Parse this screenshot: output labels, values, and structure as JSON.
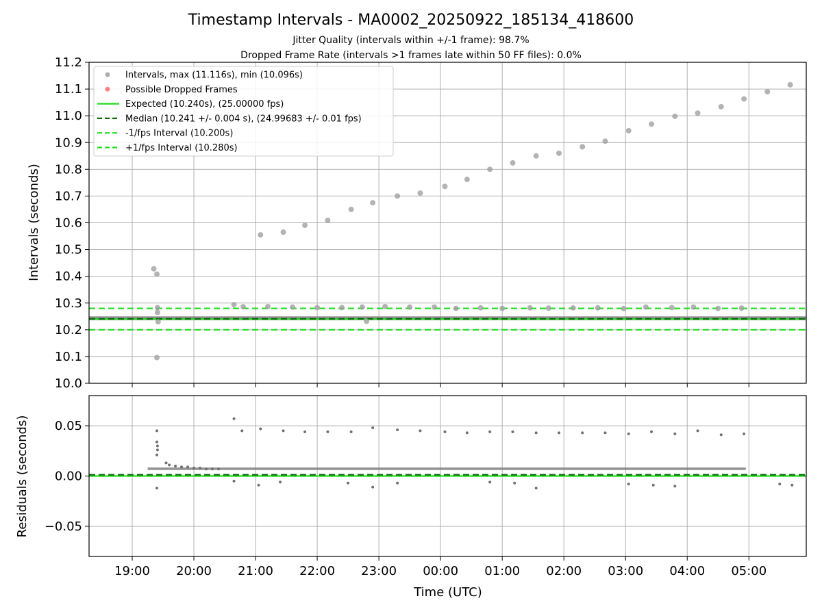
{
  "chart_data": [
    {
      "type": "scatter",
      "title": "Timestamp Intervals - MA0002_20250922_185134_418600",
      "subtitle_1": "Jitter Quality (intervals within +/-1 frame): 98.7%",
      "subtitle_2": "Dropped Frame Rate (intervals >1 frames late within 50 FF files): 0.0%",
      "xlabel": "",
      "ylabel": "Intervals (seconds)",
      "x_unit": "hours since 00:00 UTC (19:00 = -5, 05:00 = 5)",
      "xlim": [
        -5.7,
        5.93
      ],
      "ylim": [
        10.0,
        11.2
      ],
      "yticks": [
        "10.0",
        "10.1",
        "10.2",
        "10.3",
        "10.4",
        "10.5",
        "10.6",
        "10.7",
        "10.8",
        "10.9",
        "11.0",
        "11.1",
        "11.2"
      ],
      "grid": true,
      "legend_position": "upper-left",
      "legend": [
        {
          "label": "Intervals, max (11.116s), min (10.096s)",
          "kind": "marker",
          "color": "#a0a0a0"
        },
        {
          "label": "Possible Dropped Frames",
          "kind": "marker",
          "color": "#ff6b6b"
        },
        {
          "label": "Expected (10.240s), (25.00000 fps)",
          "kind": "solid",
          "color": "#1fdc1f"
        },
        {
          "label": "Median (10.241 +/- 0.004 s), (24.99683 +/- 0.01 fps)",
          "kind": "dashed",
          "color": "#0a6a0a"
        },
        {
          "label": "-1/fps Interval (10.200s)",
          "kind": "dashed",
          "color": "#1fdc1f"
        },
        {
          "label": "+1/fps Interval (10.280s)",
          "kind": "dashed",
          "color": "#1fdc1f"
        }
      ],
      "hlines": [
        {
          "name": "expected",
          "y": 10.24,
          "style": "solid",
          "color": "#1fdc1f"
        },
        {
          "name": "median",
          "y": 10.241,
          "style": "dashed",
          "color": "#0a6a0a"
        },
        {
          "name": "minus-one-fps",
          "y": 10.2,
          "style": "dashed",
          "color": "#1fdc1f"
        },
        {
          "name": "plus-one-fps",
          "y": 10.28,
          "style": "dashed",
          "color": "#1fdc1f"
        }
      ],
      "baseline_band": {
        "x_start": -5.7,
        "x_end": 5.93,
        "y_low": 10.236,
        "y_high": 10.25,
        "color": "#808080"
      },
      "series": [
        {
          "name": "Intervals, max (11.116s), min (10.096s)",
          "color": "#a0a0a0",
          "points": [
            [
              -4.65,
              10.428
            ],
            [
              -4.6,
              10.408
            ],
            [
              -4.59,
              10.283
            ],
            [
              -4.59,
              10.265
            ],
            [
              -4.58,
              10.23
            ],
            [
              -4.6,
              10.096
            ],
            [
              -3.35,
              10.294
            ],
            [
              -3.2,
              10.286
            ],
            [
              -2.92,
              10.555
            ],
            [
              -2.8,
              10.287
            ],
            [
              -2.55,
              10.565
            ],
            [
              -2.4,
              10.285
            ],
            [
              -2.2,
              10.591
            ],
            [
              -2.0,
              10.283
            ],
            [
              -1.83,
              10.609
            ],
            [
              -1.6,
              10.283
            ],
            [
              -1.45,
              10.65
            ],
            [
              -1.27,
              10.285
            ],
            [
              -1.1,
              10.675
            ],
            [
              -1.2,
              10.232
            ],
            [
              -0.9,
              10.287
            ],
            [
              -0.7,
              10.7
            ],
            [
              -0.5,
              10.285
            ],
            [
              -0.33,
              10.711
            ],
            [
              -0.1,
              10.285
            ],
            [
              0.07,
              10.736
            ],
            [
              0.25,
              10.28
            ],
            [
              0.43,
              10.762
            ],
            [
              0.65,
              10.282
            ],
            [
              0.8,
              10.8
            ],
            [
              1.0,
              10.28
            ],
            [
              1.17,
              10.824
            ],
            [
              1.45,
              10.282
            ],
            [
              1.55,
              10.85
            ],
            [
              1.75,
              10.281
            ],
            [
              1.92,
              10.86
            ],
            [
              2.15,
              10.282
            ],
            [
              2.3,
              10.884
            ],
            [
              2.55,
              10.282
            ],
            [
              2.67,
              10.905
            ],
            [
              2.97,
              10.279
            ],
            [
              3.05,
              10.944
            ],
            [
              3.33,
              10.285
            ],
            [
              3.42,
              10.969
            ],
            [
              3.75,
              10.283
            ],
            [
              3.8,
              10.998
            ],
            [
              4.1,
              10.285
            ],
            [
              4.17,
              11.01
            ],
            [
              4.5,
              10.28
            ],
            [
              4.55,
              11.034
            ],
            [
              4.88,
              10.281
            ],
            [
              4.92,
              11.063
            ],
            [
              5.3,
              11.09
            ],
            [
              5.67,
              11.116
            ]
          ]
        },
        {
          "name": "Possible Dropped Frames",
          "color": "#ff6b6b",
          "points": []
        }
      ]
    },
    {
      "type": "scatter",
      "xlabel": "Time (UTC)",
      "ylabel": "Residuals (seconds)",
      "xlim": [
        -5.7,
        5.93
      ],
      "ylim": [
        -0.08,
        0.08
      ],
      "yticks": [
        "−0.05",
        "0.00",
        "0.05"
      ],
      "xticks": [
        "19:00",
        "20:00",
        "21:00",
        "22:00",
        "23:00",
        "00:00",
        "01:00",
        "02:00",
        "03:00",
        "04:00",
        "05:00"
      ],
      "grid": true,
      "hlines": [
        {
          "name": "expected-residual",
          "y": 0.0,
          "style": "solid",
          "color": "#1fdc1f"
        },
        {
          "name": "median-residual",
          "y": 0.0013,
          "style": "dashed",
          "color": "#0a6a0a"
        }
      ],
      "series": [
        {
          "name": "Residuals",
          "color": "#707070",
          "points": [
            [
              -4.6,
              0.045
            ],
            [
              -4.6,
              0.034
            ],
            [
              -4.59,
              0.03
            ],
            [
              -4.59,
              0.026
            ],
            [
              -4.6,
              0.021
            ],
            [
              -4.6,
              -0.012
            ],
            [
              -4.45,
              0.013
            ],
            [
              -4.4,
              0.011
            ],
            [
              -4.3,
              0.01
            ],
            [
              -4.2,
              0.009
            ],
            [
              -4.1,
              0.009
            ],
            [
              -4.0,
              0.008
            ],
            [
              -3.9,
              0.008
            ],
            [
              -3.8,
              0.007
            ],
            [
              -3.7,
              0.007
            ],
            [
              -3.6,
              0.007
            ],
            [
              -3.35,
              0.057
            ],
            [
              -3.22,
              0.045
            ],
            [
              -2.92,
              0.047
            ],
            [
              -2.55,
              0.045
            ],
            [
              -2.2,
              0.044
            ],
            [
              -1.83,
              0.044
            ],
            [
              -1.45,
              0.044
            ],
            [
              -1.1,
              0.048
            ],
            [
              -0.7,
              0.046
            ],
            [
              -0.33,
              0.045
            ],
            [
              0.07,
              0.044
            ],
            [
              0.43,
              0.043
            ],
            [
              0.8,
              0.044
            ],
            [
              1.17,
              0.044
            ],
            [
              1.55,
              0.043
            ],
            [
              1.92,
              0.043
            ],
            [
              2.3,
              0.043
            ],
            [
              2.67,
              0.043
            ],
            [
              3.05,
              0.042
            ],
            [
              3.42,
              0.044
            ],
            [
              3.8,
              0.042
            ],
            [
              4.17,
              0.045
            ],
            [
              4.55,
              0.041
            ],
            [
              4.92,
              0.042
            ],
            [
              -3.35,
              -0.005
            ],
            [
              -2.95,
              -0.009
            ],
            [
              -2.6,
              -0.006
            ],
            [
              -1.5,
              -0.007
            ],
            [
              -1.1,
              -0.011
            ],
            [
              -0.7,
              -0.007
            ],
            [
              0.8,
              -0.006
            ],
            [
              1.2,
              -0.007
            ],
            [
              1.55,
              -0.012
            ],
            [
              3.05,
              -0.008
            ],
            [
              3.45,
              -0.009
            ],
            [
              3.8,
              -0.01
            ],
            [
              5.5,
              -0.008
            ],
            [
              5.7,
              -0.009
            ]
          ]
        }
      ]
    }
  ]
}
